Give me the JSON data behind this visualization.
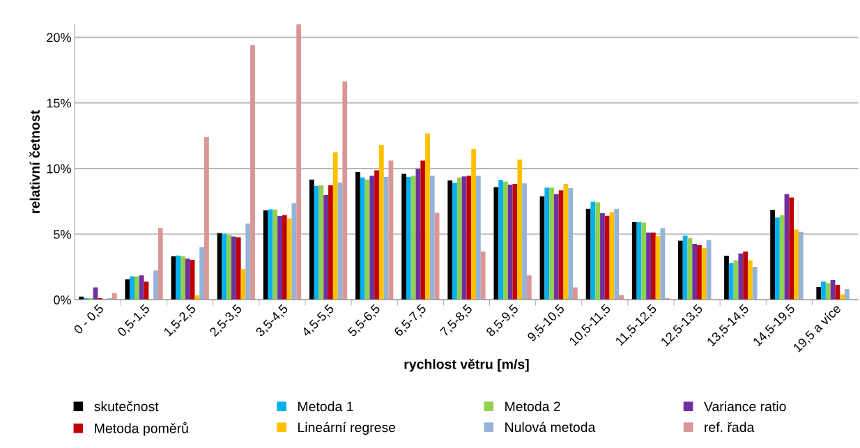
{
  "chart_data": {
    "type": "bar",
    "xlabel": "rychlost větru [m/s]",
    "ylabel": "relativní četnost",
    "categories": [
      "0 - 0,5",
      "0,5-1,5",
      "1,5-2,5",
      "2,5-3,5",
      "3,5-4,5",
      "4,5-5,5",
      "5,5-6,5",
      "6,5-7,5",
      "7,5-8,5",
      "8,5-9,5",
      "9,5-10,5",
      "10,5-11,5",
      "11,5-12,5",
      "12,5-13,5",
      "13,5-14,5",
      "14,5-19,5",
      "19,5 a více"
    ],
    "series": [
      {
        "name": "skutečnost",
        "color": "#000000",
        "values": [
          0.23,
          1.55,
          3.32,
          5.08,
          6.8,
          9.16,
          9.73,
          9.59,
          9.09,
          8.59,
          7.88,
          6.92,
          5.92,
          4.49,
          3.35,
          6.84,
          0.96
        ]
      },
      {
        "name": "Metoda 1",
        "color": "#00b0f0",
        "values": [
          0.12,
          1.78,
          3.37,
          5.03,
          6.89,
          8.67,
          9.32,
          9.36,
          8.91,
          9.13,
          8.54,
          7.47,
          5.92,
          4.88,
          2.8,
          6.26,
          1.39
        ]
      },
      {
        "name": "Metoda 2",
        "color": "#92d050",
        "values": [
          0.12,
          1.78,
          3.32,
          4.94,
          6.87,
          8.72,
          9.15,
          9.45,
          9.32,
          9.0,
          8.54,
          7.42,
          5.88,
          4.71,
          2.99,
          6.43,
          1.27
        ]
      },
      {
        "name": "Variance ratio",
        "color": "#7030a0",
        "values": [
          0.94,
          1.86,
          3.13,
          4.81,
          6.38,
          7.97,
          9.45,
          9.96,
          9.4,
          8.77,
          8.06,
          6.6,
          5.12,
          4.26,
          3.53,
          8.06,
          1.5
        ]
      },
      {
        "name": "Metoda poměrů",
        "color": "#c00000",
        "values": [
          0.12,
          1.37,
          3.04,
          4.76,
          6.43,
          8.72,
          9.86,
          10.6,
          9.45,
          8.83,
          8.33,
          6.4,
          5.12,
          4.15,
          3.67,
          7.79,
          1.12
        ]
      },
      {
        "name": "Lineární regrese",
        "color": "#ffc000",
        "values": [
          null,
          0.05,
          0.34,
          2.33,
          6.2,
          11.24,
          11.8,
          12.67,
          11.49,
          10.68,
          8.83,
          6.69,
          4.85,
          3.94,
          2.99,
          5.35,
          0.41
        ]
      },
      {
        "name": "Nulová metoda",
        "color": "#95b3d7",
        "values": [
          0.12,
          2.22,
          4.0,
          5.81,
          7.37,
          8.93,
          9.36,
          9.45,
          9.45,
          8.86,
          8.5,
          6.92,
          5.45,
          4.55,
          2.5,
          5.17,
          0.8
        ]
      },
      {
        "name": "ref. řada",
        "color": "#d99694",
        "values": [
          0.5,
          5.47,
          12.4,
          19.4,
          21.0,
          16.65,
          10.6,
          6.62,
          3.67,
          1.85,
          0.94,
          0.36,
          0.12,
          null,
          null,
          null,
          null
        ]
      }
    ],
    "ylim": [
      0,
      21
    ],
    "yticks": [
      {
        "value": 0,
        "label": "0%"
      },
      {
        "value": 5,
        "label": "5%"
      },
      {
        "value": 10,
        "label": "10%"
      },
      {
        "value": 15,
        "label": "15%"
      },
      {
        "value": 20,
        "label": "20%"
      }
    ],
    "grid": "y",
    "legend": "bottom"
  }
}
